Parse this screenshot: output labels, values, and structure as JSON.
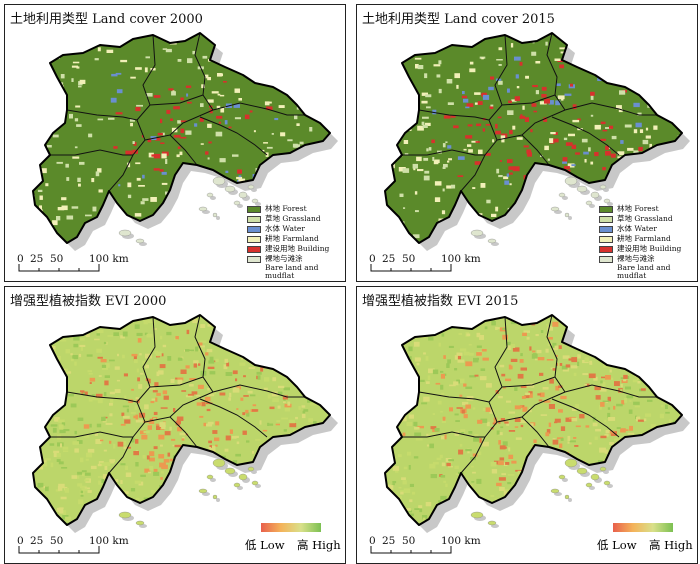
{
  "panels": [
    {
      "id": "lc2000",
      "title": "土地利用类型 Land cover 2000",
      "kind": "landcover",
      "legend": [
        {
          "label": "林地 Forest",
          "color": "#5b8a2a"
        },
        {
          "label": "草地 Grassland",
          "color": "#cfe0a8"
        },
        {
          "label": "水体 Water",
          "color": "#6a8fd0"
        },
        {
          "label": "耕地 Farmland",
          "color": "#f2f0b8"
        },
        {
          "label": "建设用地 Building",
          "color": "#d7312c"
        },
        {
          "label": "裸地与滩涂",
          "sub": "Bare land and mudflat",
          "color": "#dfe6cf"
        }
      ]
    },
    {
      "id": "lc2015",
      "title": "土地利用类型 Land cover 2015",
      "kind": "landcover",
      "legend": [
        {
          "label": "林地 Forest",
          "color": "#5b8a2a"
        },
        {
          "label": "草地 Grassland",
          "color": "#cfe0a8"
        },
        {
          "label": "水体 Water",
          "color": "#6a8fd0"
        },
        {
          "label": "耕地 Farmland",
          "color": "#f2f0b8"
        },
        {
          "label": "建设用地 Building",
          "color": "#d7312c"
        },
        {
          "label": "裸地与滩涂",
          "sub": "Bare land and mudflat",
          "color": "#dfe6cf"
        }
      ]
    },
    {
      "id": "evi2000",
      "title": "增强型植被指数 EVI 2000",
      "kind": "evi"
    },
    {
      "id": "evi2015",
      "title": "增强型植被指数 EVI 2015",
      "kind": "evi"
    }
  ],
  "scale_bar": {
    "ticks": [
      "0",
      "25",
      "50",
      "100 km"
    ]
  },
  "evi_legend": {
    "low": "低 Low",
    "high": "高 High",
    "ramp_colors": [
      "#e8604c",
      "#f4b35a",
      "#d9e08a",
      "#7cc052"
    ]
  },
  "colors": {
    "forest": "#5b8a2a",
    "building": "#d7312c",
    "water": "#6a8fd0",
    "evi_base": "#bcd66a",
    "evi_low": "#e07a45",
    "shadow": "#c8c8c8"
  }
}
